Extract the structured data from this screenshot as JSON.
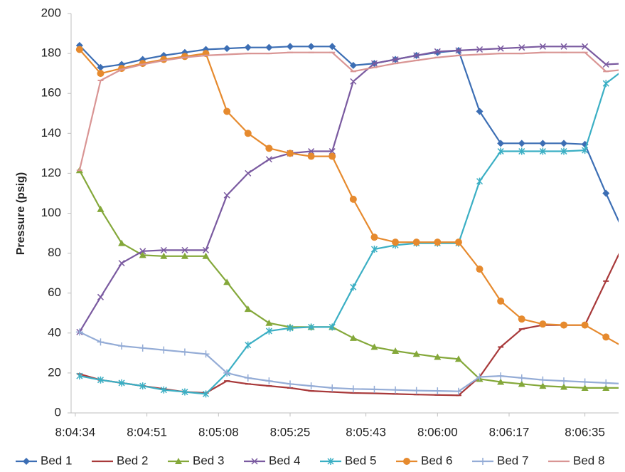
{
  "chart_data": {
    "type": "line",
    "y_label": "Pressure (psig)",
    "x": [
      "8:04:35",
      "8:04:40",
      "8:04:45",
      "8:04:50",
      "8:04:55",
      "8:05:00",
      "8:05:05",
      "8:05:10",
      "8:05:15",
      "8:05:20",
      "8:05:25",
      "8:05:30",
      "8:05:35",
      "8:05:40",
      "8:05:45",
      "8:05:50",
      "8:05:55",
      "8:06:00",
      "8:06:05",
      "8:06:10",
      "8:06:15",
      "8:06:20",
      "8:06:25",
      "8:06:30",
      "8:06:35",
      "8:06:40",
      "8:06:45"
    ],
    "xlim": [
      "8:04:33",
      "8:06:43"
    ],
    "xticks": [
      "8:04:34",
      "8:04:51",
      "8:05:08",
      "8:05:25",
      "8:05:43",
      "8:06:00",
      "8:06:17",
      "8:06:35"
    ],
    "ylim": [
      0,
      200
    ],
    "yticks": [
      0,
      20,
      40,
      60,
      80,
      100,
      120,
      140,
      160,
      180,
      200
    ],
    "grid": false,
    "legend": "bottom",
    "series": [
      {
        "name": "Bed 1",
        "color": "#3c6eb4",
        "marker": "diamond",
        "values": [
          184,
          173,
          174.5,
          177,
          179,
          180.5,
          182,
          182.5,
          183,
          183,
          183.5,
          183.5,
          183.5,
          174,
          175,
          177,
          179,
          180.5,
          181.5,
          151,
          135,
          135,
          135,
          135,
          134.5,
          110,
          87
        ]
      },
      {
        "name": "Bed 2",
        "color": "#a8393a",
        "marker": "dash",
        "values": [
          19.5,
          16.5,
          15,
          13.5,
          12,
          10.5,
          10,
          16,
          14.5,
          13.5,
          12.5,
          11,
          10.5,
          10,
          9.8,
          9.5,
          9.2,
          9,
          8.8,
          18,
          33,
          42,
          44,
          44,
          44,
          66,
          88
        ]
      },
      {
        "name": "Bed 3",
        "color": "#84a83a",
        "marker": "triangle",
        "values": [
          121.5,
          102,
          85,
          79,
          78.5,
          78.5,
          78.5,
          65.5,
          52,
          45,
          43,
          43,
          43,
          37.5,
          33,
          31,
          29.5,
          28,
          27,
          17,
          15.5,
          14.5,
          13.5,
          13,
          12.5,
          12.5,
          12.5
        ]
      },
      {
        "name": "Bed 4",
        "color": "#7a5aa0",
        "marker": "x",
        "values": [
          40.5,
          58,
          75,
          81,
          81.5,
          81.5,
          81.5,
          109,
          120,
          127,
          130,
          131,
          131,
          166,
          175,
          177,
          179,
          181,
          181.5,
          182,
          182.5,
          183,
          183.5,
          183.5,
          183.5,
          174.5,
          175
        ]
      },
      {
        "name": "Bed 5",
        "color": "#3bafc4",
        "marker": "star",
        "values": [
          18.5,
          16.5,
          15,
          13.5,
          11.5,
          10.5,
          9.5,
          20,
          34,
          41,
          42.5,
          43,
          43,
          63,
          82,
          84,
          85,
          85,
          85,
          116,
          131,
          131,
          131,
          131,
          131.5,
          165,
          173
        ]
      },
      {
        "name": "Bed 6",
        "color": "#e68a2e",
        "marker": "circle",
        "values": [
          182,
          170,
          172.5,
          175,
          177,
          178.5,
          180,
          151,
          140,
          132.5,
          130,
          128.5,
          128.5,
          107,
          88,
          85.5,
          85.5,
          85.5,
          85.5,
          72,
          56,
          47,
          44.5,
          44,
          44,
          38,
          32
        ]
      },
      {
        "name": "Bed 7",
        "color": "#94acd6",
        "marker": "plus",
        "values": [
          40.5,
          35.5,
          33.5,
          32.5,
          31.5,
          30.5,
          29.5,
          20,
          17.5,
          16,
          14.5,
          13.5,
          12.5,
          12,
          11.8,
          11.5,
          11.2,
          11,
          10.8,
          18,
          18.5,
          17.5,
          16.5,
          16,
          15.5,
          15,
          14.5
        ]
      },
      {
        "name": "Bed 8",
        "color": "#d99594",
        "marker": "dash",
        "values": [
          121.5,
          166.5,
          172,
          174.5,
          176.5,
          178,
          179,
          179.5,
          180,
          180,
          180.5,
          180.5,
          180.5,
          171,
          173,
          175,
          176.5,
          178,
          179,
          179.5,
          180,
          180,
          180.5,
          180.5,
          180.5,
          171,
          172
        ]
      }
    ]
  }
}
